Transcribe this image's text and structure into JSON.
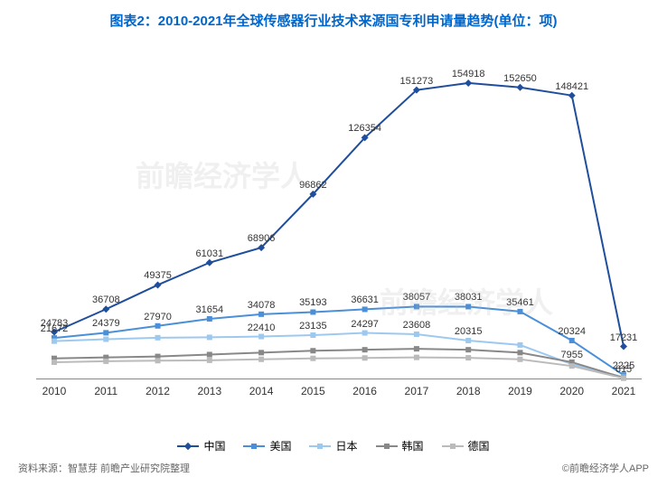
{
  "title": "图表2：2010-2021年全球传感器行业技术来源国专利申请量趋势(单位：项)",
  "source": "资料来源：智慧芽 前瞻产业研究院整理",
  "copyright": "©前瞻经济学人APP",
  "watermark": "前瞻经济学人",
  "chart": {
    "type": "line",
    "categories": [
      "2010",
      "2011",
      "2012",
      "2013",
      "2014",
      "2015",
      "2016",
      "2017",
      "2018",
      "2019",
      "2020",
      "2021"
    ],
    "y_min": 0,
    "y_max": 170000,
    "background_color": "#ffffff",
    "axis_color": "#888888",
    "label_fontsize": 11,
    "legend_position": "bottom",
    "series": [
      {
        "name": "中国",
        "color": "#1f4e9c",
        "line_width": 2,
        "marker": "diamond",
        "values": [
          24783,
          36708,
          49375,
          61031,
          68906,
          96862,
          126354,
          151273,
          154918,
          152650,
          148421,
          17231
        ],
        "show_labels": [
          true,
          true,
          true,
          true,
          true,
          true,
          true,
          true,
          true,
          true,
          true,
          true
        ]
      },
      {
        "name": "美国",
        "color": "#4a8fd8",
        "line_width": 2,
        "marker": "square",
        "values": [
          21672,
          24379,
          27970,
          31654,
          34078,
          35193,
          36631,
          38057,
          38031,
          35461,
          20324,
          2225
        ],
        "show_labels": [
          true,
          true,
          true,
          true,
          true,
          true,
          true,
          true,
          true,
          true,
          true,
          true
        ]
      },
      {
        "name": "日本",
        "color": "#9ec9ef",
        "line_width": 2,
        "marker": "square",
        "values": [
          20000,
          21000,
          21800,
          22000,
          22410,
          23135,
          24297,
          23608,
          20315,
          18000,
          7955,
          1200
        ],
        "show_labels": [
          false,
          false,
          false,
          false,
          true,
          true,
          true,
          true,
          true,
          false,
          true,
          false
        ]
      },
      {
        "name": "韩国",
        "color": "#888888",
        "line_width": 2,
        "marker": "square",
        "values": [
          11000,
          11500,
          12000,
          13000,
          14000,
          15000,
          15500,
          16000,
          15500,
          14000,
          9000,
          800
        ],
        "show_labels": [
          false,
          false,
          false,
          false,
          false,
          false,
          false,
          false,
          false,
          false,
          false,
          false
        ]
      },
      {
        "name": "德国",
        "color": "#bbbbbb",
        "line_width": 2,
        "marker": "square",
        "values": [
          9000,
          9500,
          9800,
          10000,
          10500,
          11000,
          11200,
          11500,
          11300,
          10500,
          7000,
          615
        ],
        "show_labels": [
          false,
          false,
          false,
          false,
          false,
          false,
          false,
          false,
          false,
          false,
          false,
          true
        ]
      }
    ]
  }
}
